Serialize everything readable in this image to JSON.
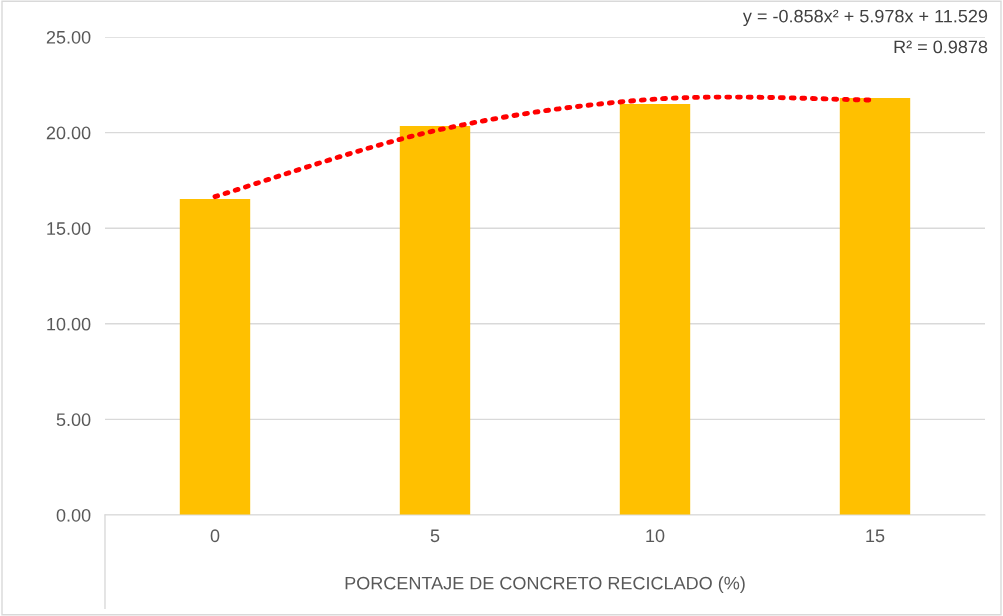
{
  "chart_data": {
    "type": "bar",
    "xlabel": "PORCENTAJE DE CONCRETO RECICLADO (%)",
    "categories": [
      "0",
      "5",
      "10",
      "15"
    ],
    "series": [
      {
        "color": "#ffc000",
        "values": [
          16.53,
          20.35,
          21.5,
          21.81
        ]
      },
      {
        "type": "line",
        "color": "#ff0000",
        "line_style": "dotted",
        "x": [
          "0",
          "5",
          "10",
          "15"
        ],
        "values": [
          16.65,
          20.1,
          21.75,
          21.7
        ]
      }
    ],
    "annotations": [
      "y = -0.858x² + 5.978x + 11.529",
      "R² = 0.9878"
    ],
    "ylim": [
      0,
      25
    ],
    "yticks": [
      {
        "value": 0,
        "label": "0.00"
      },
      {
        "value": 5,
        "label": "5.00"
      },
      {
        "value": 10,
        "label": "10.00"
      },
      {
        "value": 15,
        "label": "15.00"
      },
      {
        "value": 20,
        "label": "20.00"
      },
      {
        "value": 25,
        "label": "25.00"
      }
    ],
    "grid": "y",
    "legend": false
  }
}
